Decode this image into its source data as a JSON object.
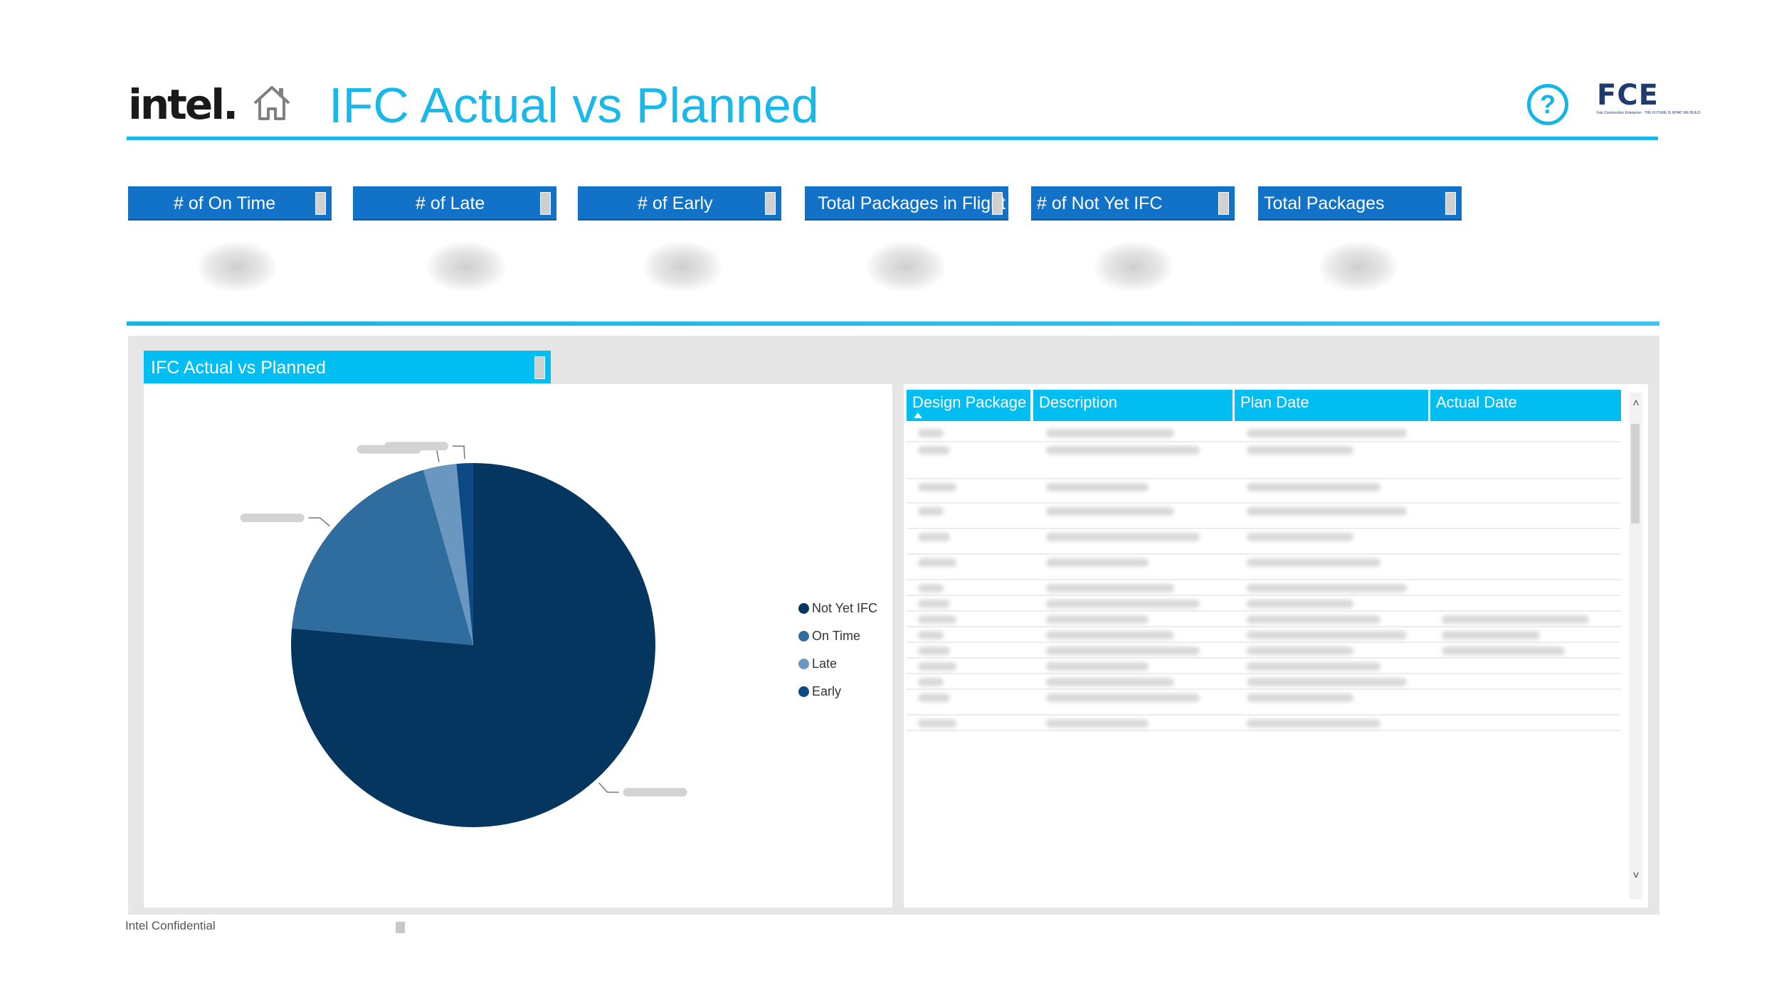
{
  "header": {
    "logo_text": "intel.",
    "title": "IFC Actual vs Planned",
    "help_glyph": "?",
    "brand_logo_text": "FCE",
    "brand_logo_sub": "Fab Construction Enterprise · THE FUTURE IS WHAT WE BUILD",
    "accent_color": "#19b7ea"
  },
  "kpis": [
    {
      "label": "# of On Time"
    },
    {
      "label": "# of Late"
    },
    {
      "label": "# of Early"
    },
    {
      "label": "Total Packages in Flight"
    },
    {
      "label": "# of Not Yet IFC"
    },
    {
      "label": "Total Packages"
    }
  ],
  "pie_panel": {
    "title": "IFC Actual vs Planned",
    "legend": [
      {
        "label": "Not Yet IFC",
        "color": "#04365f"
      },
      {
        "label": "On Time",
        "color": "#2e6d9e"
      },
      {
        "label": "Late",
        "color": "#6a97bf"
      },
      {
        "label": "Early",
        "color": "#0d4a85"
      }
    ]
  },
  "chart_data": {
    "type": "pie",
    "slices": [
      {
        "label": "Not Yet IFC",
        "value": 76.47
      },
      {
        "label": "On Time",
        "value": 19.12
      },
      {
        "label": "Late",
        "value": 2.94
      },
      {
        "label": "Early",
        "value": 1.47
      }
    ],
    "legend_position": "right"
  },
  "table": {
    "columns": [
      "Design Package",
      "Description",
      "Plan Date",
      "Actual Date"
    ],
    "scroll_up": "˄",
    "scroll_down": "˅"
  },
  "footer": {
    "text": "Intel Confidential"
  }
}
